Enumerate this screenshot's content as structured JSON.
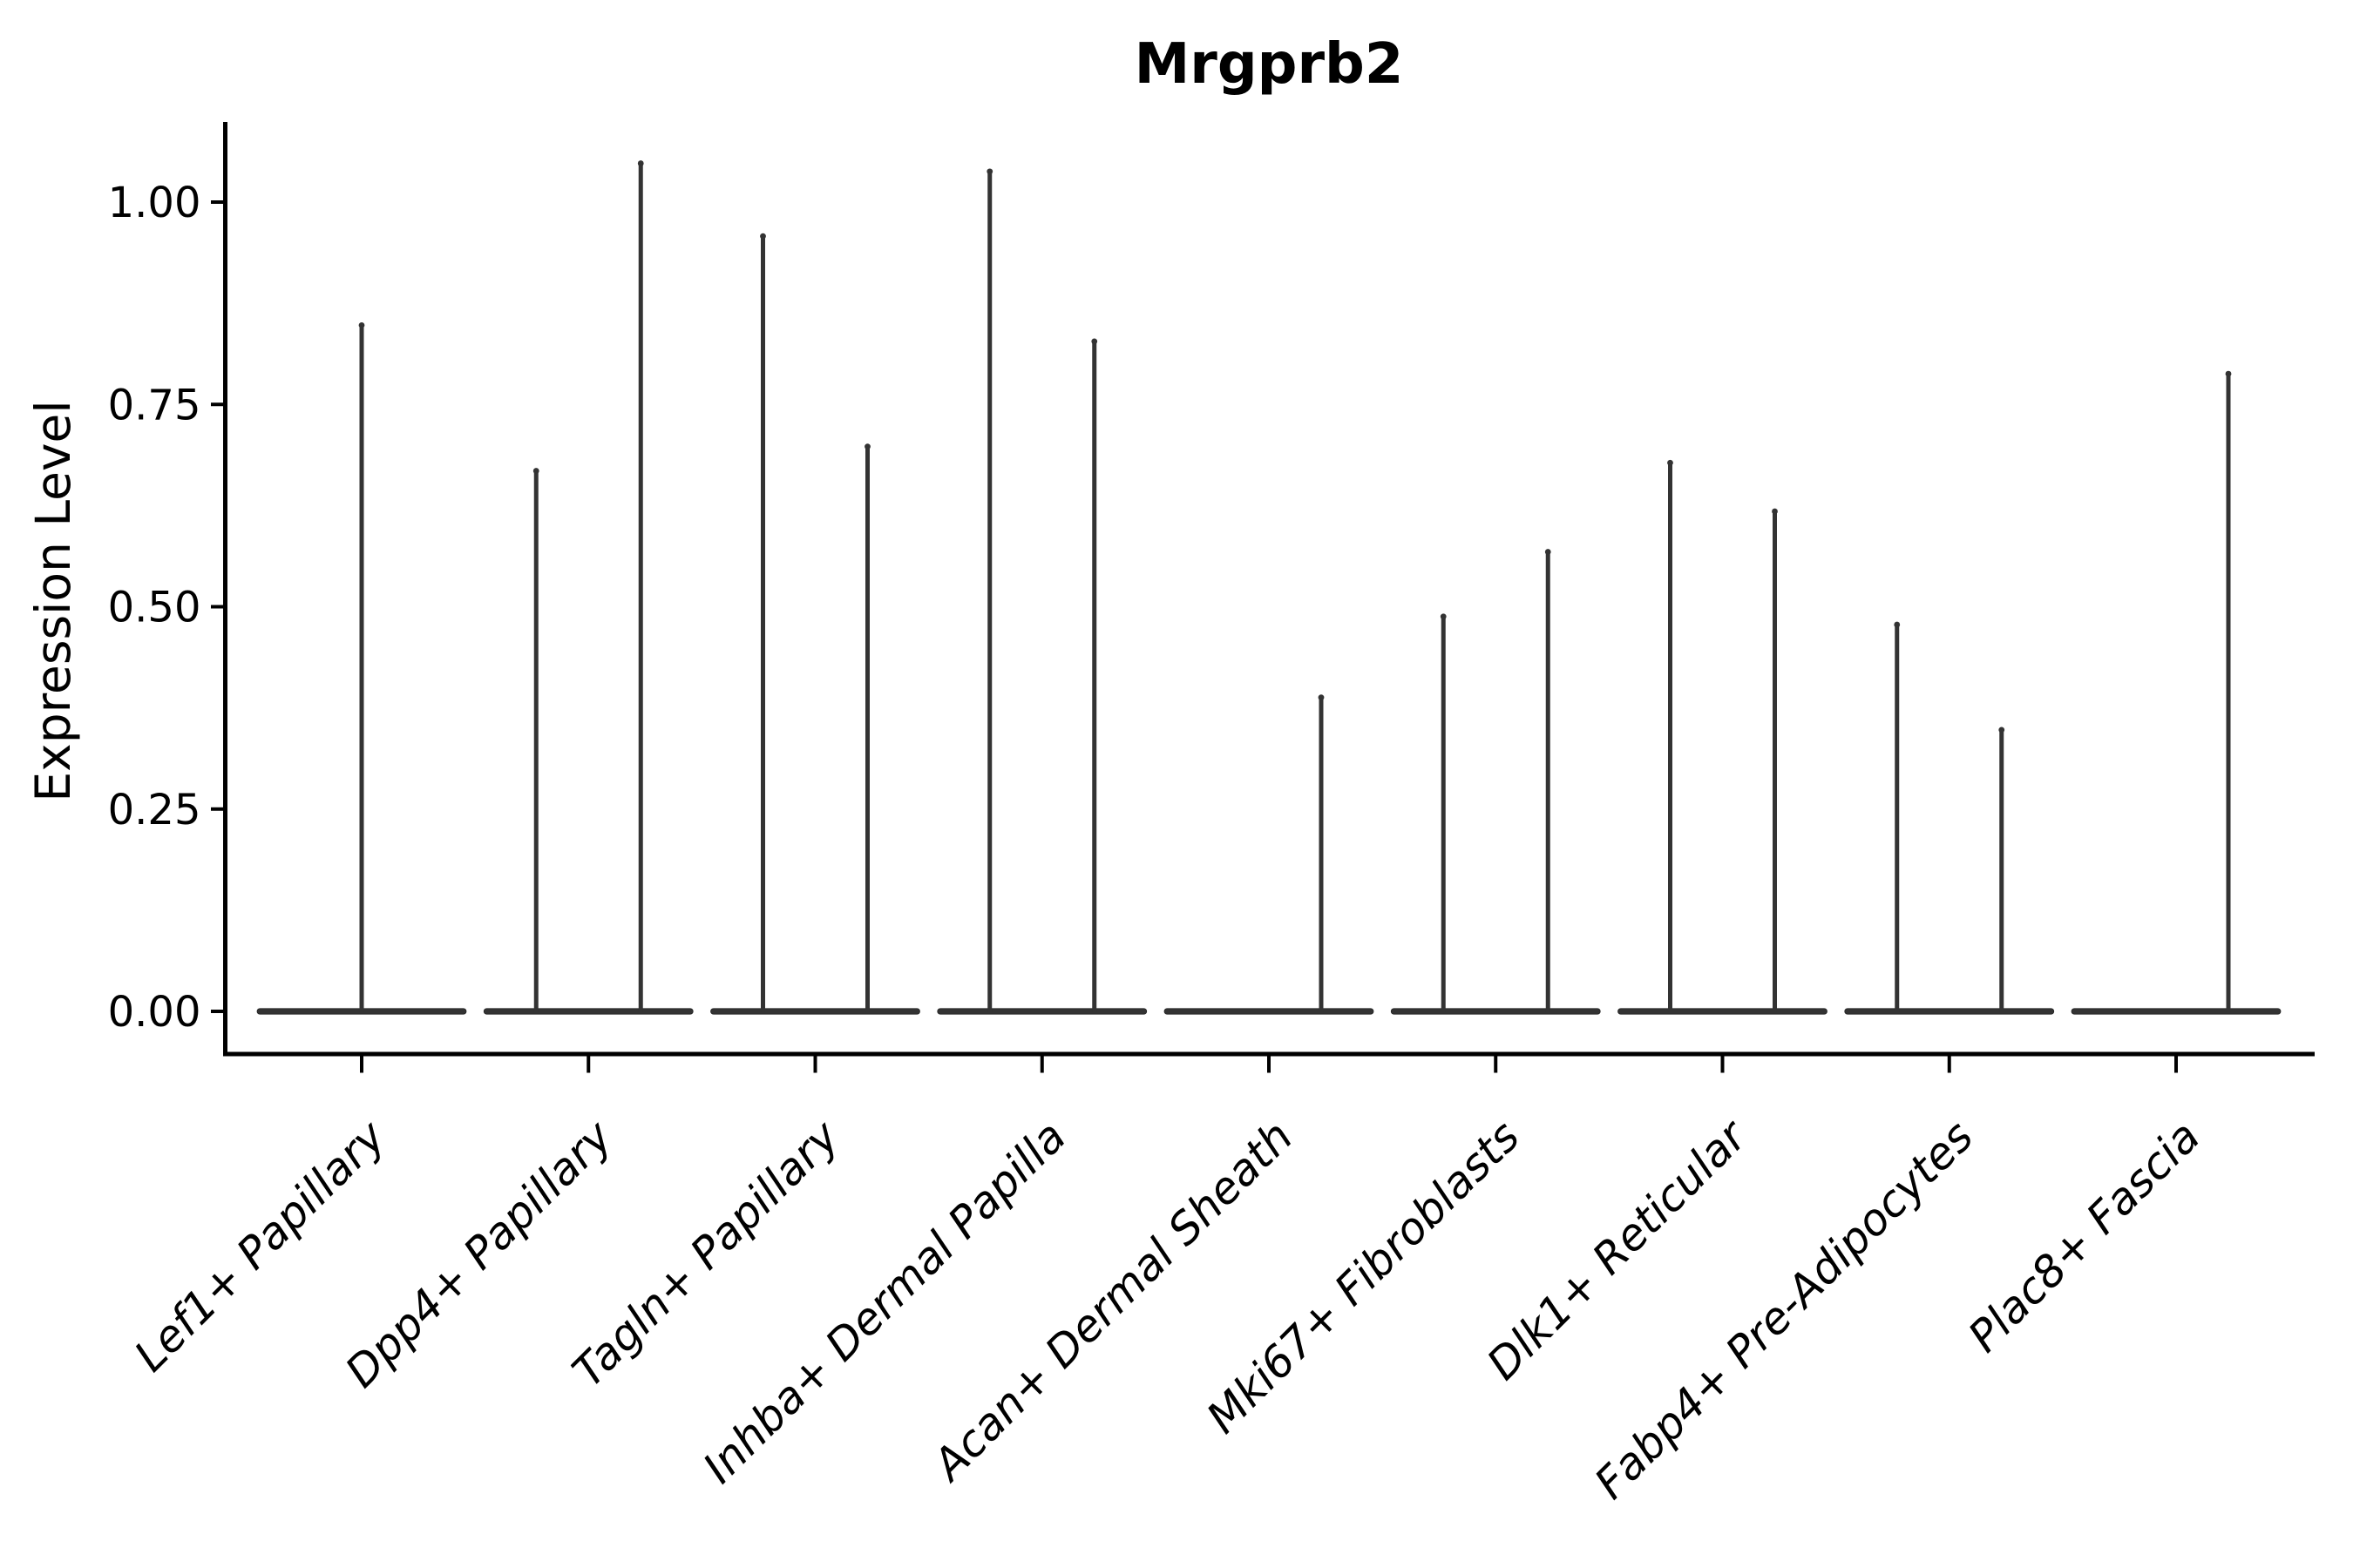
{
  "chart_data": {
    "type": "violin",
    "title": "Mrgprb2",
    "ylabel": "Expression Level",
    "xlabel": "",
    "grid": false,
    "legend": null,
    "ylim": [
      -0.05,
      1.11
    ],
    "ytick_values": [
      0,
      0.25,
      0.5,
      0.75,
      1.0
    ],
    "ytick_labels": [
      "0.00",
      "0.25",
      "0.50",
      "0.75",
      "1.00"
    ],
    "categories": [
      "Lef1+ Papillary",
      "Dpp4+ Papillary",
      "Tagln+ Papillary",
      "Inhba+ Dermal Papilla",
      "Acan+ Dermal Sheath",
      "Mki67+ Fibroblasts",
      "Dlk1+ Reticular",
      "Fabp4+ Pre-Adipocytes",
      "Plac8+ Fascia"
    ],
    "violins": [
      {
        "category": "Lef1+ Papillary",
        "baseline_value": 0,
        "spikes": [
          {
            "position": "center",
            "max_expression": 0.85
          }
        ]
      },
      {
        "category": "Dpp4+ Papillary",
        "baseline_value": 0,
        "spikes": [
          {
            "position": "left",
            "max_expression": 0.67
          },
          {
            "position": "right",
            "max_expression": 1.05
          }
        ]
      },
      {
        "category": "Tagln+ Papillary",
        "baseline_value": 0,
        "spikes": [
          {
            "position": "left",
            "max_expression": 0.96
          },
          {
            "position": "right",
            "max_expression": 0.7
          }
        ]
      },
      {
        "category": "Inhba+ Dermal Papilla",
        "baseline_value": 0,
        "spikes": [
          {
            "position": "left",
            "max_expression": 1.04
          },
          {
            "position": "right",
            "max_expression": 0.83
          }
        ]
      },
      {
        "category": "Acan+ Dermal Sheath",
        "baseline_value": 0,
        "spikes": [
          {
            "position": "right",
            "max_expression": 0.39
          }
        ]
      },
      {
        "category": "Mki67+ Fibroblasts",
        "baseline_value": 0,
        "spikes": [
          {
            "position": "left",
            "max_expression": 0.49
          },
          {
            "position": "right",
            "max_expression": 0.57
          }
        ]
      },
      {
        "category": "Dlk1+ Reticular",
        "baseline_value": 0,
        "spikes": [
          {
            "position": "left",
            "max_expression": 0.68
          },
          {
            "position": "right",
            "max_expression": 0.62
          }
        ]
      },
      {
        "category": "Fabp4+ Pre-Adipocytes",
        "baseline_value": 0,
        "spikes": [
          {
            "position": "left",
            "max_expression": 0.48
          },
          {
            "position": "right",
            "max_expression": 0.35
          }
        ]
      },
      {
        "category": "Plac8+ Fascia",
        "baseline_value": 0,
        "spikes": [
          {
            "position": "right",
            "max_expression": 0.79
          }
        ]
      }
    ],
    "colors": {
      "violin": "#333333",
      "violin_edge": "#222222",
      "axis": "#000000",
      "text": "#000000",
      "background": "#ffffff"
    }
  }
}
